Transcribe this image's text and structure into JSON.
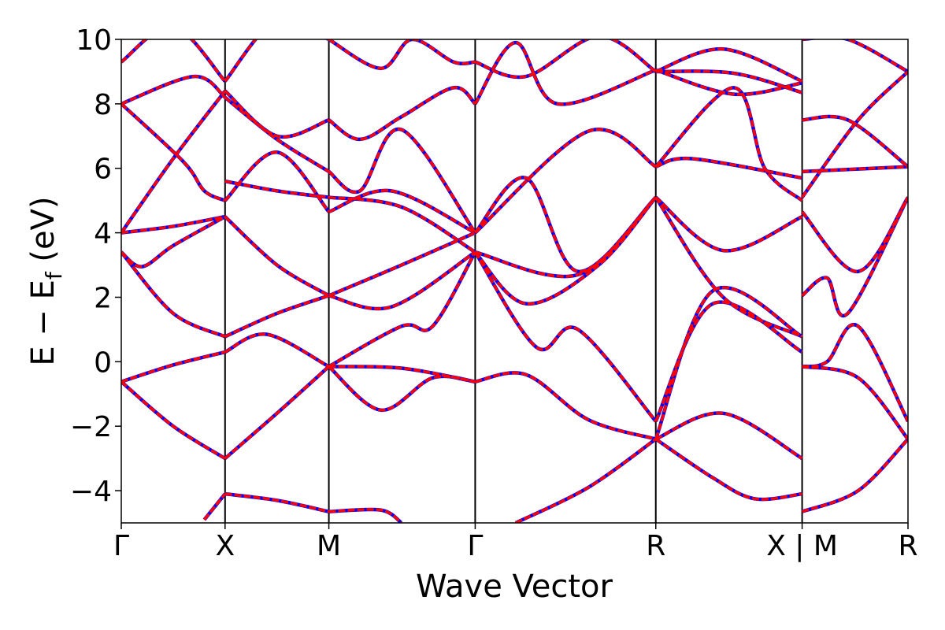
{
  "chart_data": {
    "type": "line",
    "xlabel": "Wave Vector",
    "ylabel": "E − E",
    "ylabel_subscript": "f",
    "ylabel_unit": " (eV)",
    "ylim": [
      -5,
      10
    ],
    "xlim": [
      0,
      7.58
    ],
    "yticks": [
      -4,
      -2,
      0,
      2,
      4,
      6,
      8,
      10
    ],
    "ytick_labels": [
      "−4",
      "−2",
      "0",
      "2",
      "4",
      "6",
      "8",
      "10"
    ],
    "kpoints": [
      {
        "label": "Γ",
        "x": 0
      },
      {
        "label": "X",
        "x": 1.0
      },
      {
        "label": "M",
        "x": 2.0
      },
      {
        "label": "Γ",
        "x": 3.41
      },
      {
        "label": "R",
        "x": 5.15
      },
      {
        "label": "X | M",
        "x": 6.56
      },
      {
        "label": "R",
        "x": 7.58
      }
    ],
    "series_colors": {
      "reference": "#0000ff",
      "overlay": "#ff0000"
    },
    "segments": [
      {
        "x": [
          0,
          1
        ],
        "bands": [
          {
            "x": [
              0,
              0.5,
              1
            ],
            "y": [
              -0.62,
              -2.0,
              -3.0
            ]
          },
          {
            "x": [
              0,
              0.5,
              1
            ],
            "y": [
              -0.62,
              -0.1,
              0.3
            ]
          },
          {
            "x": [
              0,
              0.5,
              1
            ],
            "y": [
              3.4,
              1.5,
              0.78
            ]
          },
          {
            "x": [
              0,
              0.2,
              0.5,
              1
            ],
            "y": [
              3.4,
              2.95,
              3.6,
              4.5
            ]
          },
          {
            "x": [
              0,
              0.5,
              1
            ],
            "y": [
              4.0,
              4.2,
              4.5
            ]
          },
          {
            "x": [
              0,
              0.5,
              1
            ],
            "y": [
              4.0,
              6.3,
              8.4
            ]
          },
          {
            "x": [
              0,
              0.6,
              0.8,
              1
            ],
            "y": [
              8.0,
              6.2,
              5.3,
              5.0
            ]
          },
          {
            "x": [
              0,
              0.7,
              1
            ],
            "y": [
              8.0,
              8.85,
              8.2
            ]
          },
          {
            "x": [
              0,
              0.5,
              1
            ],
            "y": [
              9.3,
              10.4,
              8.7
            ]
          },
          {
            "x": [
              0.8,
              1
            ],
            "y": [
              -4.9,
              -4.1
            ]
          }
        ]
      },
      {
        "x": [
          1,
          2
        ],
        "bands": [
          {
            "x": [
              1,
              1.5,
              2
            ],
            "y": [
              -3.0,
              -1.6,
              -0.15
            ]
          },
          {
            "x": [
              1,
              1.4,
              2
            ],
            "y": [
              0.3,
              0.85,
              -0.15
            ]
          },
          {
            "x": [
              1,
              1.5,
              2
            ],
            "y": [
              0.78,
              1.5,
              2.05
            ]
          },
          {
            "x": [
              1,
              1.5,
              2
            ],
            "y": [
              4.5,
              3.0,
              2.05
            ]
          },
          {
            "x": [
              1,
              1.5,
              2
            ],
            "y": [
              5.6,
              5.3,
              5.1
            ]
          },
          {
            "x": [
              1,
              1.5,
              2
            ],
            "y": [
              5.0,
              6.5,
              4.65
            ]
          },
          {
            "x": [
              1,
              1.5,
              2
            ],
            "y": [
              8.4,
              7.0,
              7.5
            ]
          },
          {
            "x": [
              1,
              1.5,
              2
            ],
            "y": [
              8.2,
              6.9,
              5.9
            ]
          },
          {
            "x": [
              1,
              1.5,
              2
            ],
            "y": [
              8.7,
              10.6,
              10.0
            ]
          },
          {
            "x": [
              1,
              1.5,
              2
            ],
            "y": [
              -4.1,
              -4.3,
              -4.65
            ]
          }
        ]
      },
      {
        "x": [
          2,
          3.41
        ],
        "bands": [
          {
            "x": [
              2,
              2.5,
              3.0,
              3.41
            ],
            "y": [
              -0.15,
              -1.5,
              -0.5,
              -0.62
            ]
          },
          {
            "x": [
              2,
              2.7,
              3.41
            ],
            "y": [
              -0.15,
              -0.2,
              -0.62
            ]
          },
          {
            "x": [
              2,
              2.7,
              3.0,
              3.41
            ],
            "y": [
              -0.15,
              1.1,
              1.1,
              3.4
            ]
          },
          {
            "x": [
              2,
              2.6,
              3.41
            ],
            "y": [
              2.05,
              1.7,
              3.4
            ]
          },
          {
            "x": [
              2,
              2.7,
              3.41
            ],
            "y": [
              2.05,
              3.0,
              4.0
            ]
          },
          {
            "x": [
              2,
              2.6,
              3.41
            ],
            "y": [
              4.65,
              5.3,
              4.0
            ]
          },
          {
            "x": [
              2,
              2.7,
              3.41
            ],
            "y": [
              5.1,
              4.8,
              3.4
            ]
          },
          {
            "x": [
              2,
              2.3,
              2.7,
              3.41
            ],
            "y": [
              5.9,
              5.3,
              7.2,
              4.0
            ]
          },
          {
            "x": [
              2,
              2.3,
              2.7,
              3.2,
              3.41
            ],
            "y": [
              7.5,
              6.9,
              7.6,
              8.5,
              8.0
            ]
          },
          {
            "x": [
              2,
              2.5,
              2.8,
              3.2,
              3.41
            ],
            "y": [
              10.0,
              9.1,
              10.0,
              9.3,
              9.3
            ]
          },
          {
            "x": [
              2,
              2.5,
              2.7
            ],
            "y": [
              -4.65,
              -4.6,
              -5.0
            ]
          }
        ]
      },
      {
        "x": [
          3.41,
          5.15
        ],
        "bands": [
          {
            "x": [
              3.41,
              3.9,
              4.5,
              5.15
            ],
            "y": [
              -0.62,
              -0.4,
              -1.8,
              -2.4
            ]
          },
          {
            "x": [
              3.41,
              4.0,
              4.4,
              5.15
            ],
            "y": [
              3.4,
              0.45,
              1.0,
              -1.85
            ]
          },
          {
            "x": [
              3.41,
              3.9,
              4.6,
              5.15
            ],
            "y": [
              3.4,
              1.8,
              3.0,
              5.1
            ]
          },
          {
            "x": [
              3.41,
              3.9,
              4.4,
              5.15
            ],
            "y": [
              4.0,
              5.7,
              2.8,
              5.1
            ]
          },
          {
            "x": [
              3.41,
              4.5,
              5.15
            ],
            "y": [
              4.0,
              7.15,
              6.05
            ]
          },
          {
            "x": [
              3.41,
              4.4,
              5.15
            ],
            "y": [
              3.4,
              2.7,
              5.1
            ]
          },
          {
            "x": [
              3.41,
              3.8,
              4.2,
              5.15
            ],
            "y": [
              8.0,
              9.9,
              8.0,
              9.05
            ]
          },
          {
            "x": [
              3.41,
              3.9,
              4.6,
              5.15
            ],
            "y": [
              9.3,
              8.85,
              10.1,
              9.0
            ]
          },
          {
            "x": [
              3.8,
              4.5,
              5.15
            ],
            "y": [
              -5.0,
              -3.9,
              -2.4
            ]
          }
        ]
      },
      {
        "x": [
          5.15,
          6.56
        ],
        "bands": [
          {
            "x": [
              5.15,
              5.7,
              6.1,
              6.56
            ],
            "y": [
              -2.4,
              -3.6,
              -4.25,
              -4.1
            ]
          },
          {
            "x": [
              5.15,
              5.8,
              6.56
            ],
            "y": [
              -2.4,
              -1.6,
              -3.0
            ]
          },
          {
            "x": [
              5.15,
              5.7,
              6.56
            ],
            "y": [
              -1.85,
              1.8,
              0.3
            ]
          },
          {
            "x": [
              5.15,
              5.7,
              6.56
            ],
            "y": [
              -2.4,
              2.2,
              0.78
            ]
          },
          {
            "x": [
              5.15,
              5.8,
              6.56
            ],
            "y": [
              5.1,
              3.45,
              4.5
            ]
          },
          {
            "x": [
              5.15,
              5.8,
              6.56
            ],
            "y": [
              5.1,
              2.0,
              0.78
            ]
          },
          {
            "x": [
              5.15,
              5.5,
              6.56
            ],
            "y": [
              6.05,
              6.3,
              5.7
            ]
          },
          {
            "x": [
              5.15,
              5.9,
              6.2,
              6.56
            ],
            "y": [
              6.05,
              8.5,
              6.0,
              5.0
            ]
          },
          {
            "x": [
              5.15,
              5.8,
              6.56
            ],
            "y": [
              9.0,
              9.7,
              8.7
            ]
          },
          {
            "x": [
              5.15,
              5.9,
              6.56
            ],
            "y": [
              9.0,
              8.95,
              8.35
            ]
          },
          {
            "x": [
              5.15,
              5.9,
              6.56
            ],
            "y": [
              9.05,
              8.3,
              8.65
            ]
          }
        ]
      },
      {
        "x": [
          6.56,
          7.58
        ],
        "bands": [
          {
            "x": [
              6.56,
              7.1,
              7.58
            ],
            "y": [
              -4.65,
              -4.0,
              -2.4
            ]
          },
          {
            "x": [
              6.56,
              7.1,
              7.58
            ],
            "y": [
              -0.15,
              -0.5,
              -2.4
            ]
          },
          {
            "x": [
              6.56,
              6.8,
              7.1,
              7.58
            ],
            "y": [
              -0.15,
              0.0,
              1.1,
              -1.85
            ]
          },
          {
            "x": [
              6.56,
              6.8,
              7.0,
              7.58
            ],
            "y": [
              2.05,
              2.6,
              1.5,
              5.1
            ]
          },
          {
            "x": [
              6.56,
              7.1,
              7.58
            ],
            "y": [
              4.65,
              2.8,
              5.1
            ]
          },
          {
            "x": [
              6.56,
              7.58
            ],
            "y": [
              5.9,
              6.05
            ]
          },
          {
            "x": [
              6.56,
              7.0,
              7.58
            ],
            "y": [
              7.5,
              7.5,
              6.05
            ]
          },
          {
            "x": [
              6.56,
              7.1,
              7.58
            ],
            "y": [
              5.1,
              7.5,
              9.0
            ]
          },
          {
            "x": [
              6.56,
              7.0,
              7.58
            ],
            "y": [
              10.0,
              10.0,
              9.0
            ]
          }
        ]
      }
    ]
  }
}
